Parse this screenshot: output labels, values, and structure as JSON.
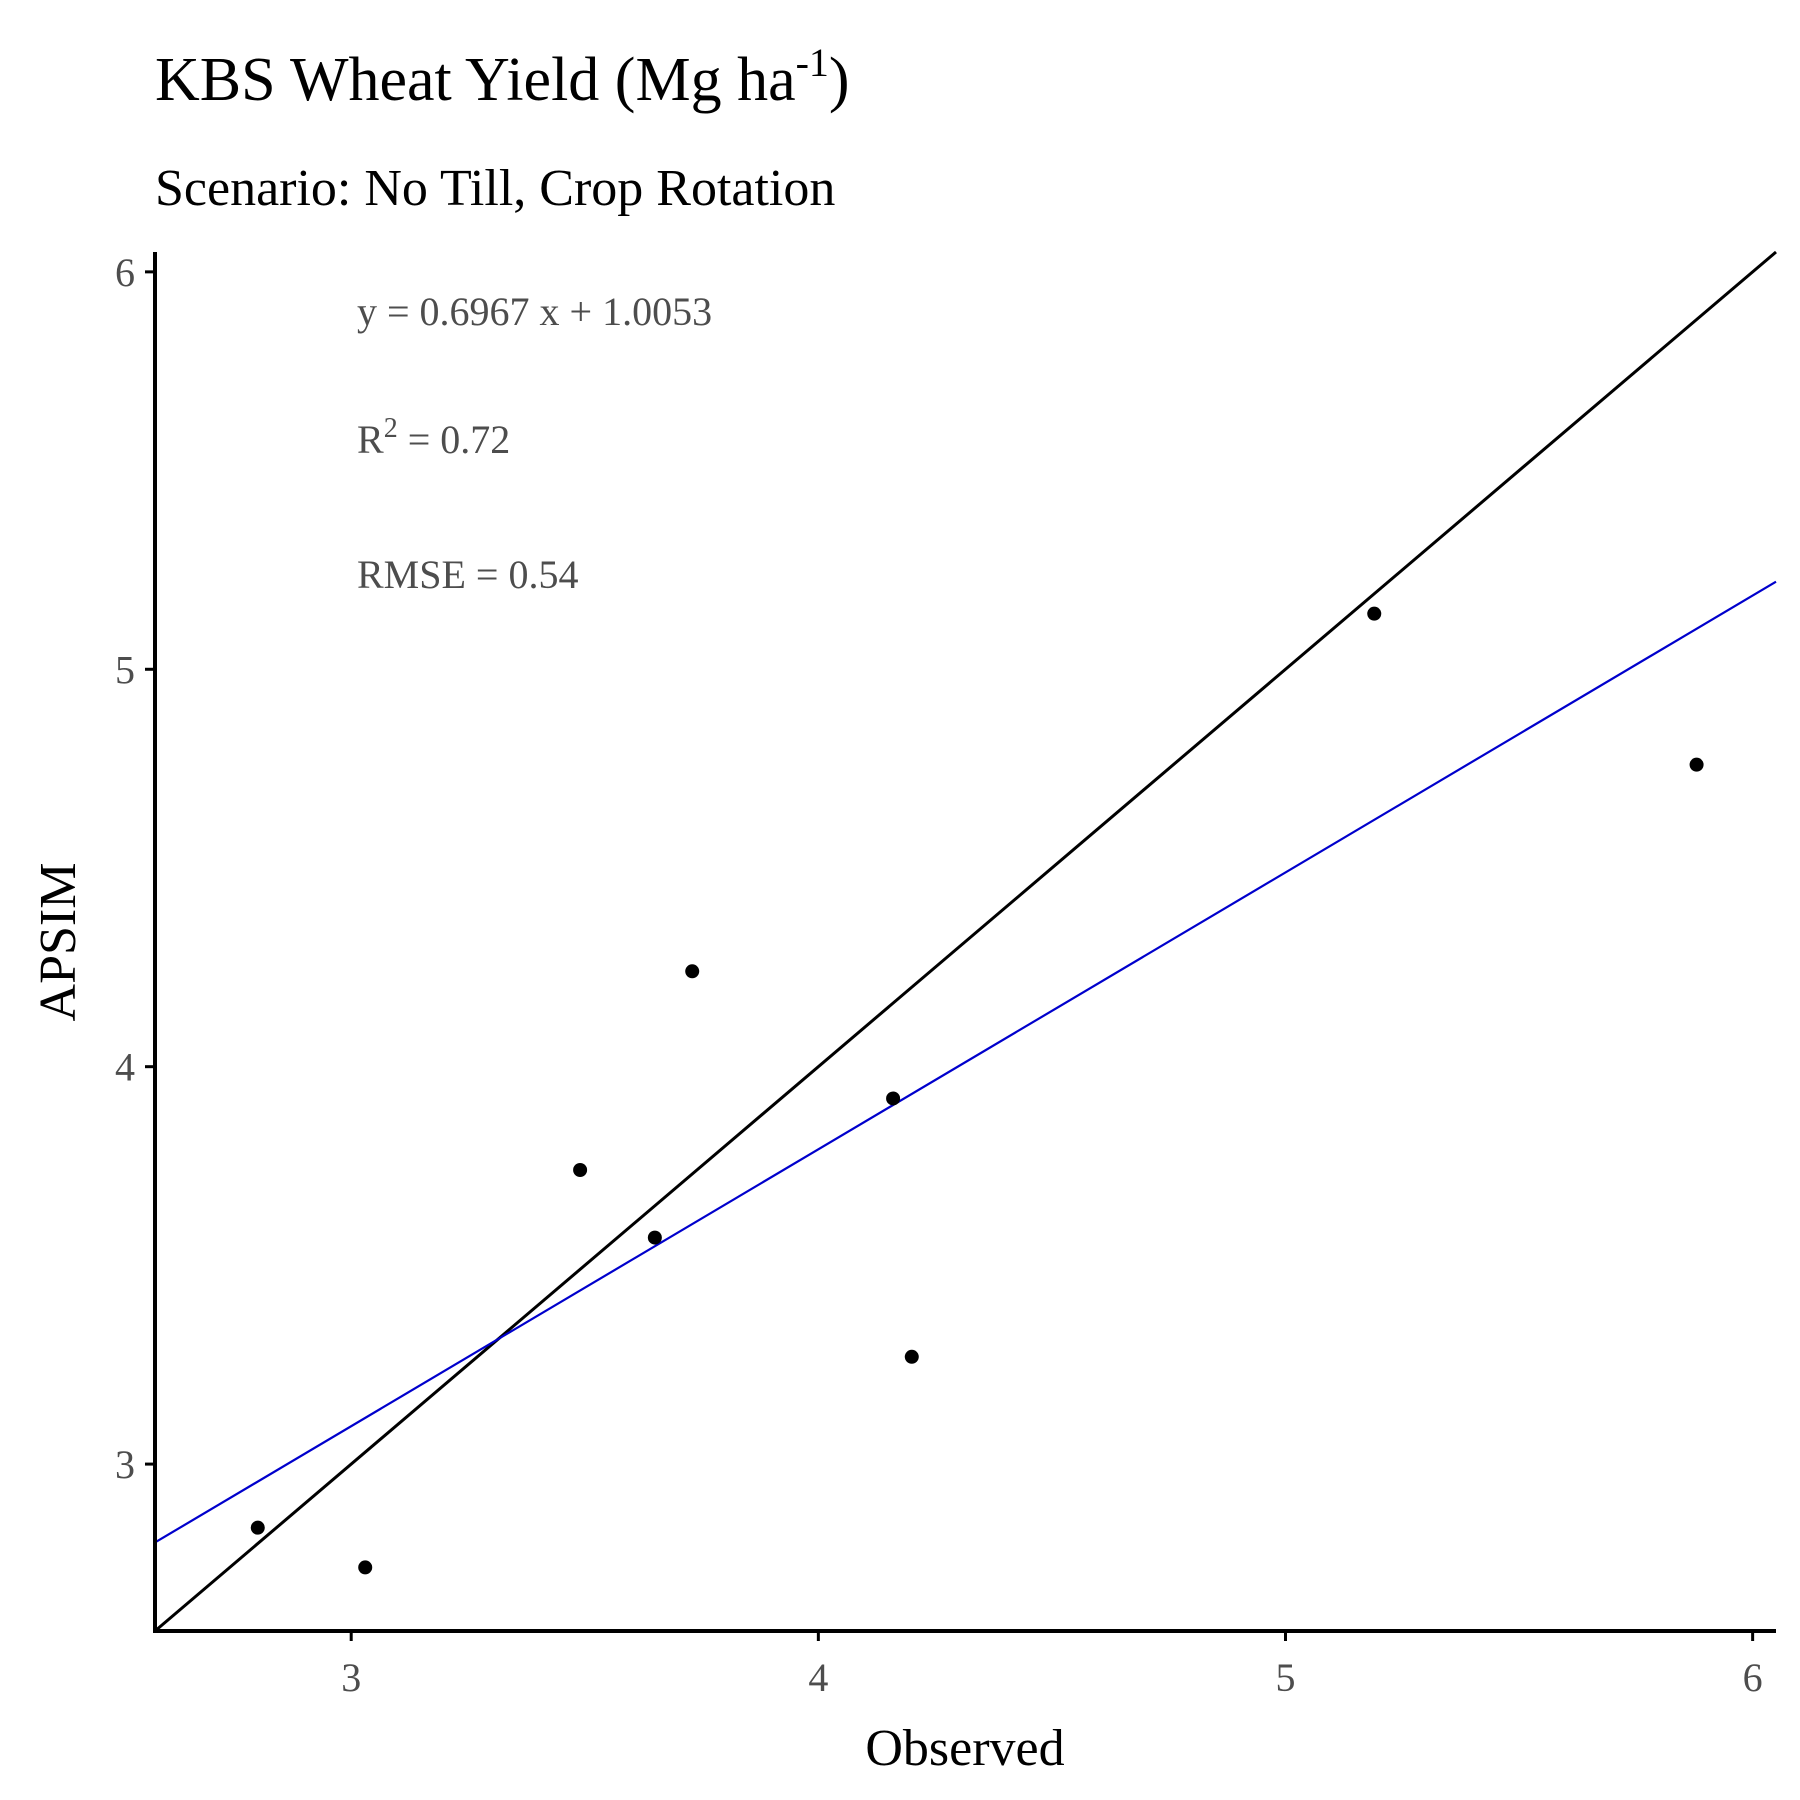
{
  "chart_data": {
    "type": "scatter",
    "title": "KBS Wheat Yield (Mg ha",
    "title_superscript": "-1",
    "title_suffix": ")",
    "subtitle": "Scenario: No Till, Crop Rotation",
    "xlabel": "Observed",
    "ylabel": "APSIM",
    "xlim": [
      2.58,
      6.05
    ],
    "ylim": [
      2.58,
      6.05
    ],
    "xticks": [
      "3",
      "4",
      "5",
      "6"
    ],
    "yticks": [
      "3",
      "4",
      "5",
      "6"
    ],
    "grid": false,
    "points": [
      {
        "x": 2.8,
        "y": 2.84
      },
      {
        "x": 3.03,
        "y": 2.74
      },
      {
        "x": 3.49,
        "y": 3.74
      },
      {
        "x": 3.65,
        "y": 3.57
      },
      {
        "x": 3.73,
        "y": 4.24
      },
      {
        "x": 4.16,
        "y": 3.92
      },
      {
        "x": 4.2,
        "y": 3.27
      },
      {
        "x": 5.19,
        "y": 5.14
      },
      {
        "x": 5.88,
        "y": 4.76
      }
    ],
    "reference_line": {
      "slope": 1,
      "intercept": 0,
      "color": "#000000"
    },
    "fit_line": {
      "slope": 0.6967,
      "intercept": 1.0053,
      "color": "#0000cc"
    },
    "annotations": {
      "equation": "y = 0.6967 x +  1.0053",
      "r2_prefix": "R",
      "r2_superscript": "2",
      "r2_value": " = 0.72",
      "rmse": "RMSE = 0.54"
    },
    "point_color": "#000000"
  }
}
